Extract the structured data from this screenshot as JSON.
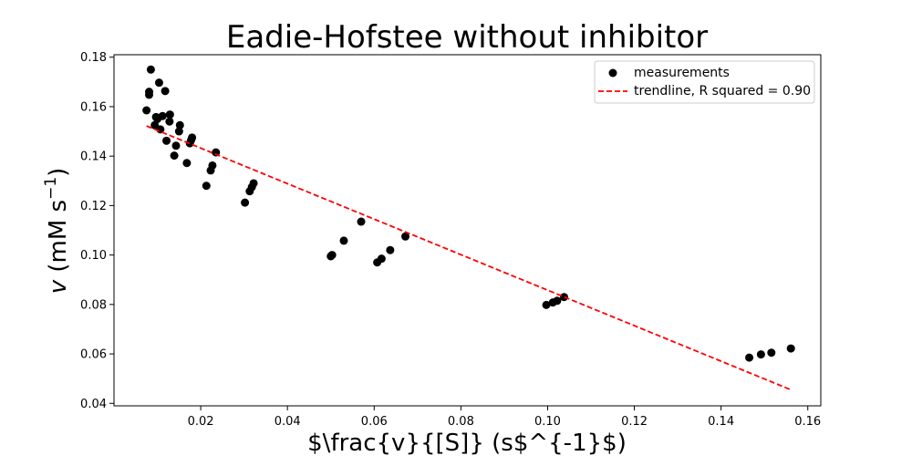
{
  "chart_data": {
    "type": "scatter",
    "title": "Eadie-Hofstee without inhibitor",
    "xlabel": "$\\frac{v}{[S]} (s$^{-1}$)",
    "ylabel_v": "v",
    "ylabel_unit": " (mM s",
    "ylabel_exp": "−1",
    "ylabel_close": ")",
    "xlim": [
      0.0,
      0.163
    ],
    "ylim": [
      0.039,
      0.181
    ],
    "xticks": [
      0.02,
      0.04,
      0.06,
      0.08,
      0.1,
      0.12,
      0.14,
      0.16
    ],
    "xtick_labels": [
      "0.02",
      "0.04",
      "0.06",
      "0.08",
      "0.10",
      "0.12",
      "0.14",
      "0.16"
    ],
    "yticks": [
      0.04,
      0.06,
      0.08,
      0.1,
      0.12,
      0.14,
      0.16,
      0.18
    ],
    "ytick_labels": [
      "0.04",
      "0.06",
      "0.08",
      "0.10",
      "0.12",
      "0.14",
      "0.16",
      "0.18"
    ],
    "grid": false,
    "legend_position": "top-right",
    "series": [
      {
        "name": "measurements",
        "kind": "scatter",
        "color": "#000000",
        "points": [
          [
            0.0075,
            0.1585
          ],
          [
            0.0081,
            0.166
          ],
          [
            0.0081,
            0.1648
          ],
          [
            0.0085,
            0.175
          ],
          [
            0.0094,
            0.1525
          ],
          [
            0.0097,
            0.1558
          ],
          [
            0.01,
            0.155
          ],
          [
            0.0104,
            0.1697
          ],
          [
            0.0107,
            0.1508
          ],
          [
            0.0112,
            0.1562
          ],
          [
            0.0118,
            0.1663
          ],
          [
            0.0121,
            0.1462
          ],
          [
            0.0128,
            0.154
          ],
          [
            0.0129,
            0.1568
          ],
          [
            0.0139,
            0.1402
          ],
          [
            0.0143,
            0.1442
          ],
          [
            0.015,
            0.15
          ],
          [
            0.0152,
            0.1525
          ],
          [
            0.0168,
            0.1372
          ],
          [
            0.0175,
            0.1452
          ],
          [
            0.0178,
            0.1465
          ],
          [
            0.018,
            0.1475
          ],
          [
            0.0213,
            0.128
          ],
          [
            0.0223,
            0.1342
          ],
          [
            0.0227,
            0.1362
          ],
          [
            0.0235,
            0.1415
          ],
          [
            0.0302,
            0.1212
          ],
          [
            0.0313,
            0.1258
          ],
          [
            0.0318,
            0.1275
          ],
          [
            0.0322,
            0.129
          ],
          [
            0.05,
            0.0995
          ],
          [
            0.0503,
            0.1
          ],
          [
            0.053,
            0.1058
          ],
          [
            0.057,
            0.1135
          ],
          [
            0.0607,
            0.097
          ],
          [
            0.0617,
            0.0985
          ],
          [
            0.0637,
            0.102
          ],
          [
            0.0672,
            0.1075
          ],
          [
            0.0997,
            0.0798
          ],
          [
            0.1012,
            0.0808
          ],
          [
            0.1022,
            0.0815
          ],
          [
            0.1038,
            0.083
          ],
          [
            0.1465,
            0.0585
          ],
          [
            0.1492,
            0.0598
          ],
          [
            0.1516,
            0.0605
          ],
          [
            0.1561,
            0.0622
          ]
        ]
      },
      {
        "name": "trendline, R squared = 0.90",
        "kind": "line",
        "style": "dashed",
        "color": "#ff0000",
        "points": [
          [
            0.0075,
            0.1522
          ],
          [
            0.1561,
            0.0455
          ]
        ]
      }
    ]
  }
}
